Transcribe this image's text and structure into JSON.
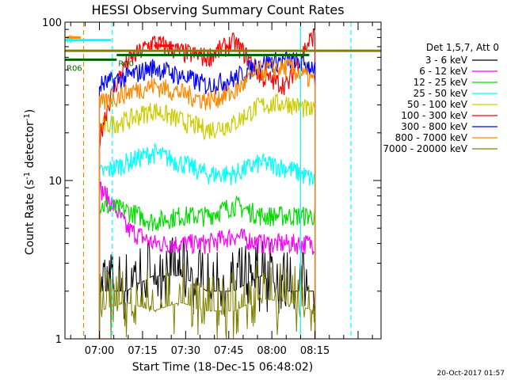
{
  "chart_data": {
    "type": "line",
    "title": "HESSI Observing Summary Count Rates",
    "xlabel": "Start Time (18-Dec-15 06:48:02)",
    "ylabel": "Count Rate (s",
    "ylabel_sup": "-1",
    "ylabel_rest": " detector",
    "ylabel_end": ")",
    "yscale": "log",
    "ylim": [
      1,
      100
    ],
    "xlim_min": [
      -12,
      98
    ],
    "x_unit": "minutes since 07:00",
    "y_ticks": [
      {
        "value": 1,
        "label": "1"
      },
      {
        "value": 10,
        "label": "10"
      },
      {
        "value": 100,
        "label": "100"
      }
    ],
    "x_ticks": [
      {
        "value": 0,
        "label": "07:00"
      },
      {
        "value": 15,
        "label": "07:15"
      },
      {
        "value": 30,
        "label": "07:30"
      },
      {
        "value": 45,
        "label": "07:45"
      },
      {
        "value": 60,
        "label": "08:00"
      },
      {
        "value": 75,
        "label": "08:15"
      }
    ],
    "legend": {
      "header": "Det 1,5,7, Att 0",
      "placement": "right",
      "entries": [
        {
          "label": "3 - 6 keV",
          "color": "#000000"
        },
        {
          "label": "6 - 12 keV",
          "color": "#ff00ff"
        },
        {
          "label": "12 - 25 keV",
          "color": "#00dd00"
        },
        {
          "label": "25 - 50 keV",
          "color": "#00ffff"
        },
        {
          "label": "50 - 100 keV",
          "color": "#cccc00"
        },
        {
          "label": "100 - 300 keV",
          "color": "#ff0000"
        },
        {
          "label": "300 - 800 keV",
          "color": "#0000ff"
        },
        {
          "label": "800 - 7000 keV",
          "color": "#ff8800"
        },
        {
          "label": "7000 - 20000 keV",
          "color": "#808000"
        }
      ]
    },
    "series": [
      {
        "name": "3 - 6 keV",
        "color": "#000000",
        "start": 0,
        "end": 75,
        "level": [
          2.0,
          2.0,
          2.5,
          2.5,
          2.0,
          2.0,
          2.5,
          2.0,
          2.0
        ]
      },
      {
        "name": "6 - 12 keV",
        "color": "#ff00ff",
        "start": 0,
        "end": 75,
        "level": [
          9.0,
          5.0,
          4.0,
          4.0,
          4.0,
          4.5,
          4.0,
          4.0,
          4.0
        ]
      },
      {
        "name": "12 - 25 keV",
        "color": "#00dd00",
        "start": 0,
        "end": 75,
        "level": [
          7.0,
          6.5,
          5.5,
          6.0,
          6.0,
          7.0,
          6.0,
          6.0,
          6.0
        ]
      },
      {
        "name": "25 - 50 keV",
        "color": "#00ffff",
        "start": 0,
        "end": 75,
        "level": [
          11,
          13,
          15,
          13,
          11,
          11,
          13,
          12,
          10
        ]
      },
      {
        "name": "50 - 100 keV",
        "color": "#cccc00",
        "start": 0,
        "end": 75,
        "level": [
          22,
          24,
          28,
          24,
          21,
          23,
          30,
          31,
          27
        ]
      },
      {
        "name": "100 - 300 keV",
        "color": "#ff0000",
        "start": 0,
        "end": 75,
        "level": [
          18,
          55,
          75,
          65,
          60,
          75,
          45,
          40,
          85
        ]
      },
      {
        "name": "300 - 800 keV",
        "color": "#0000ff",
        "start": 0,
        "end": 75,
        "level": [
          40,
          45,
          52,
          46,
          40,
          44,
          55,
          58,
          52
        ]
      },
      {
        "name": "800 - 7000 keV",
        "color": "#ff8800",
        "start": 0,
        "end": 75,
        "level": [
          30,
          36,
          40,
          36,
          32,
          36,
          50,
          52,
          42
        ]
      },
      {
        "name": "7000 - 20000 keV",
        "color": "#808000",
        "start": 0,
        "end": 75,
        "level": [
          1.5,
          1.7,
          1.5,
          1.7,
          1.5,
          1.5,
          1.8,
          1.7,
          1.5
        ]
      }
    ],
    "annotations": [
      {
        "label": "S",
        "color": "#ff8800",
        "x": -11.5,
        "x2": -6.5,
        "y": 80
      },
      {
        "label": "N",
        "color": "#00ffff",
        "x": -12,
        "x2": 4,
        "y": 77
      },
      {
        "label": "D",
        "color": "#ff0000",
        "x": 19,
        "x2": 26,
        "y": 71
      },
      {
        "label": "R06",
        "color": "#006600",
        "x": -12,
        "x2": 6,
        "y": 58
      },
      {
        "label": "R00",
        "color": "#006600",
        "x": 6,
        "x2": 73,
        "y": 62
      },
      {
        "label": "",
        "color": "#808000",
        "x": -12,
        "x2": 98,
        "y": 66
      }
    ],
    "vlines": [
      {
        "x": -5.5,
        "color": "#ff8800",
        "dashed": true
      },
      {
        "x": 4.5,
        "color": "#00ffff",
        "dashed": true
      },
      {
        "x": 70,
        "color": "#00ffff",
        "dashed": false
      },
      {
        "x": 87.5,
        "color": "#00ffff",
        "dashed": true
      }
    ],
    "footer": "20-Oct-2017 01:57"
  }
}
